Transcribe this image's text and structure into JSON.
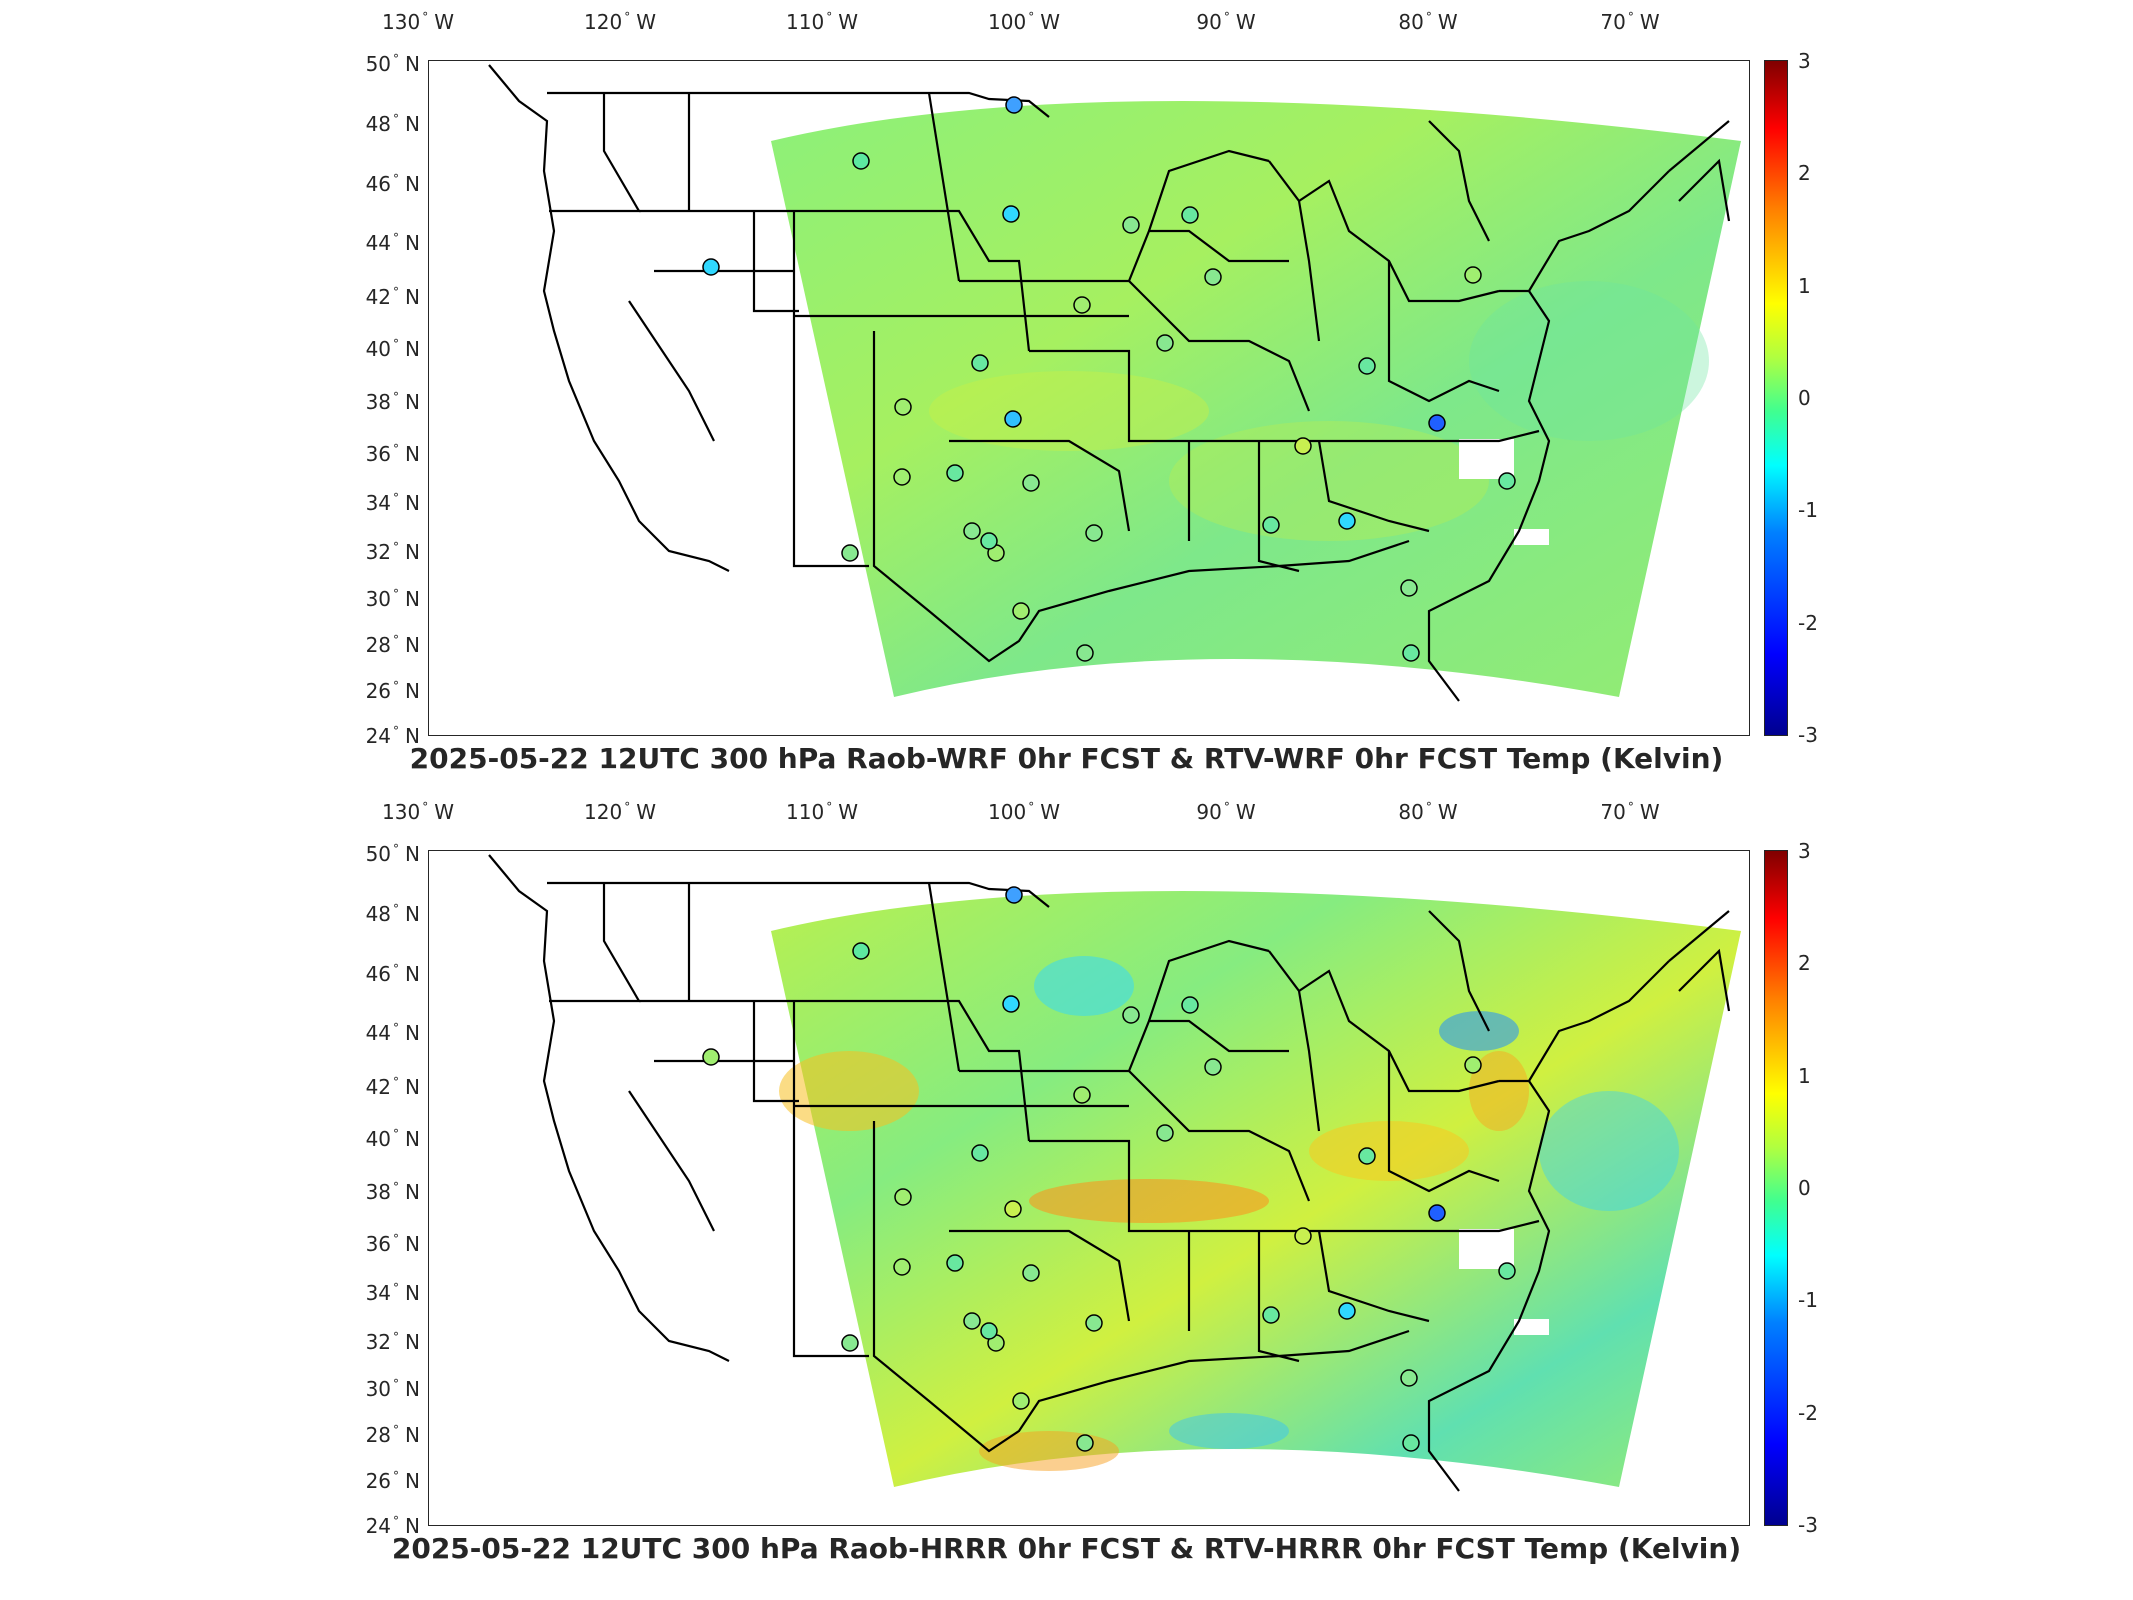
{
  "lon_labels": [
    "130",
    "120",
    "110",
    "100",
    "90",
    "80",
    "70"
  ],
  "lon_suffix": "W",
  "lat_labels": [
    "50",
    "48",
    "46",
    "44",
    "42",
    "40",
    "38",
    "36",
    "34",
    "32",
    "30",
    "28",
    "26",
    "24"
  ],
  "lat_suffix": "N",
  "colorbar": {
    "ticks": [
      "3",
      "2",
      "1",
      "0",
      "-1",
      "-2",
      "-3"
    ],
    "range": [
      -3,
      3
    ],
    "colors": [
      "#00008f",
      "#0000ff",
      "#00ffff",
      "#ffff00",
      "#ff0000",
      "#800000"
    ]
  },
  "panels": [
    {
      "title": "2025-05-22 12UTC 300 hPa Raob-WRF 0hr FCST & RTV-WRF 0hr FCST Temp (Kelvin)"
    },
    {
      "title": "2025-05-22 12UTC 300 hPa Raob-HRRR 0hr FCST & RTV-HRRR 0hr FCST Temp (Kelvin)"
    }
  ]
}
